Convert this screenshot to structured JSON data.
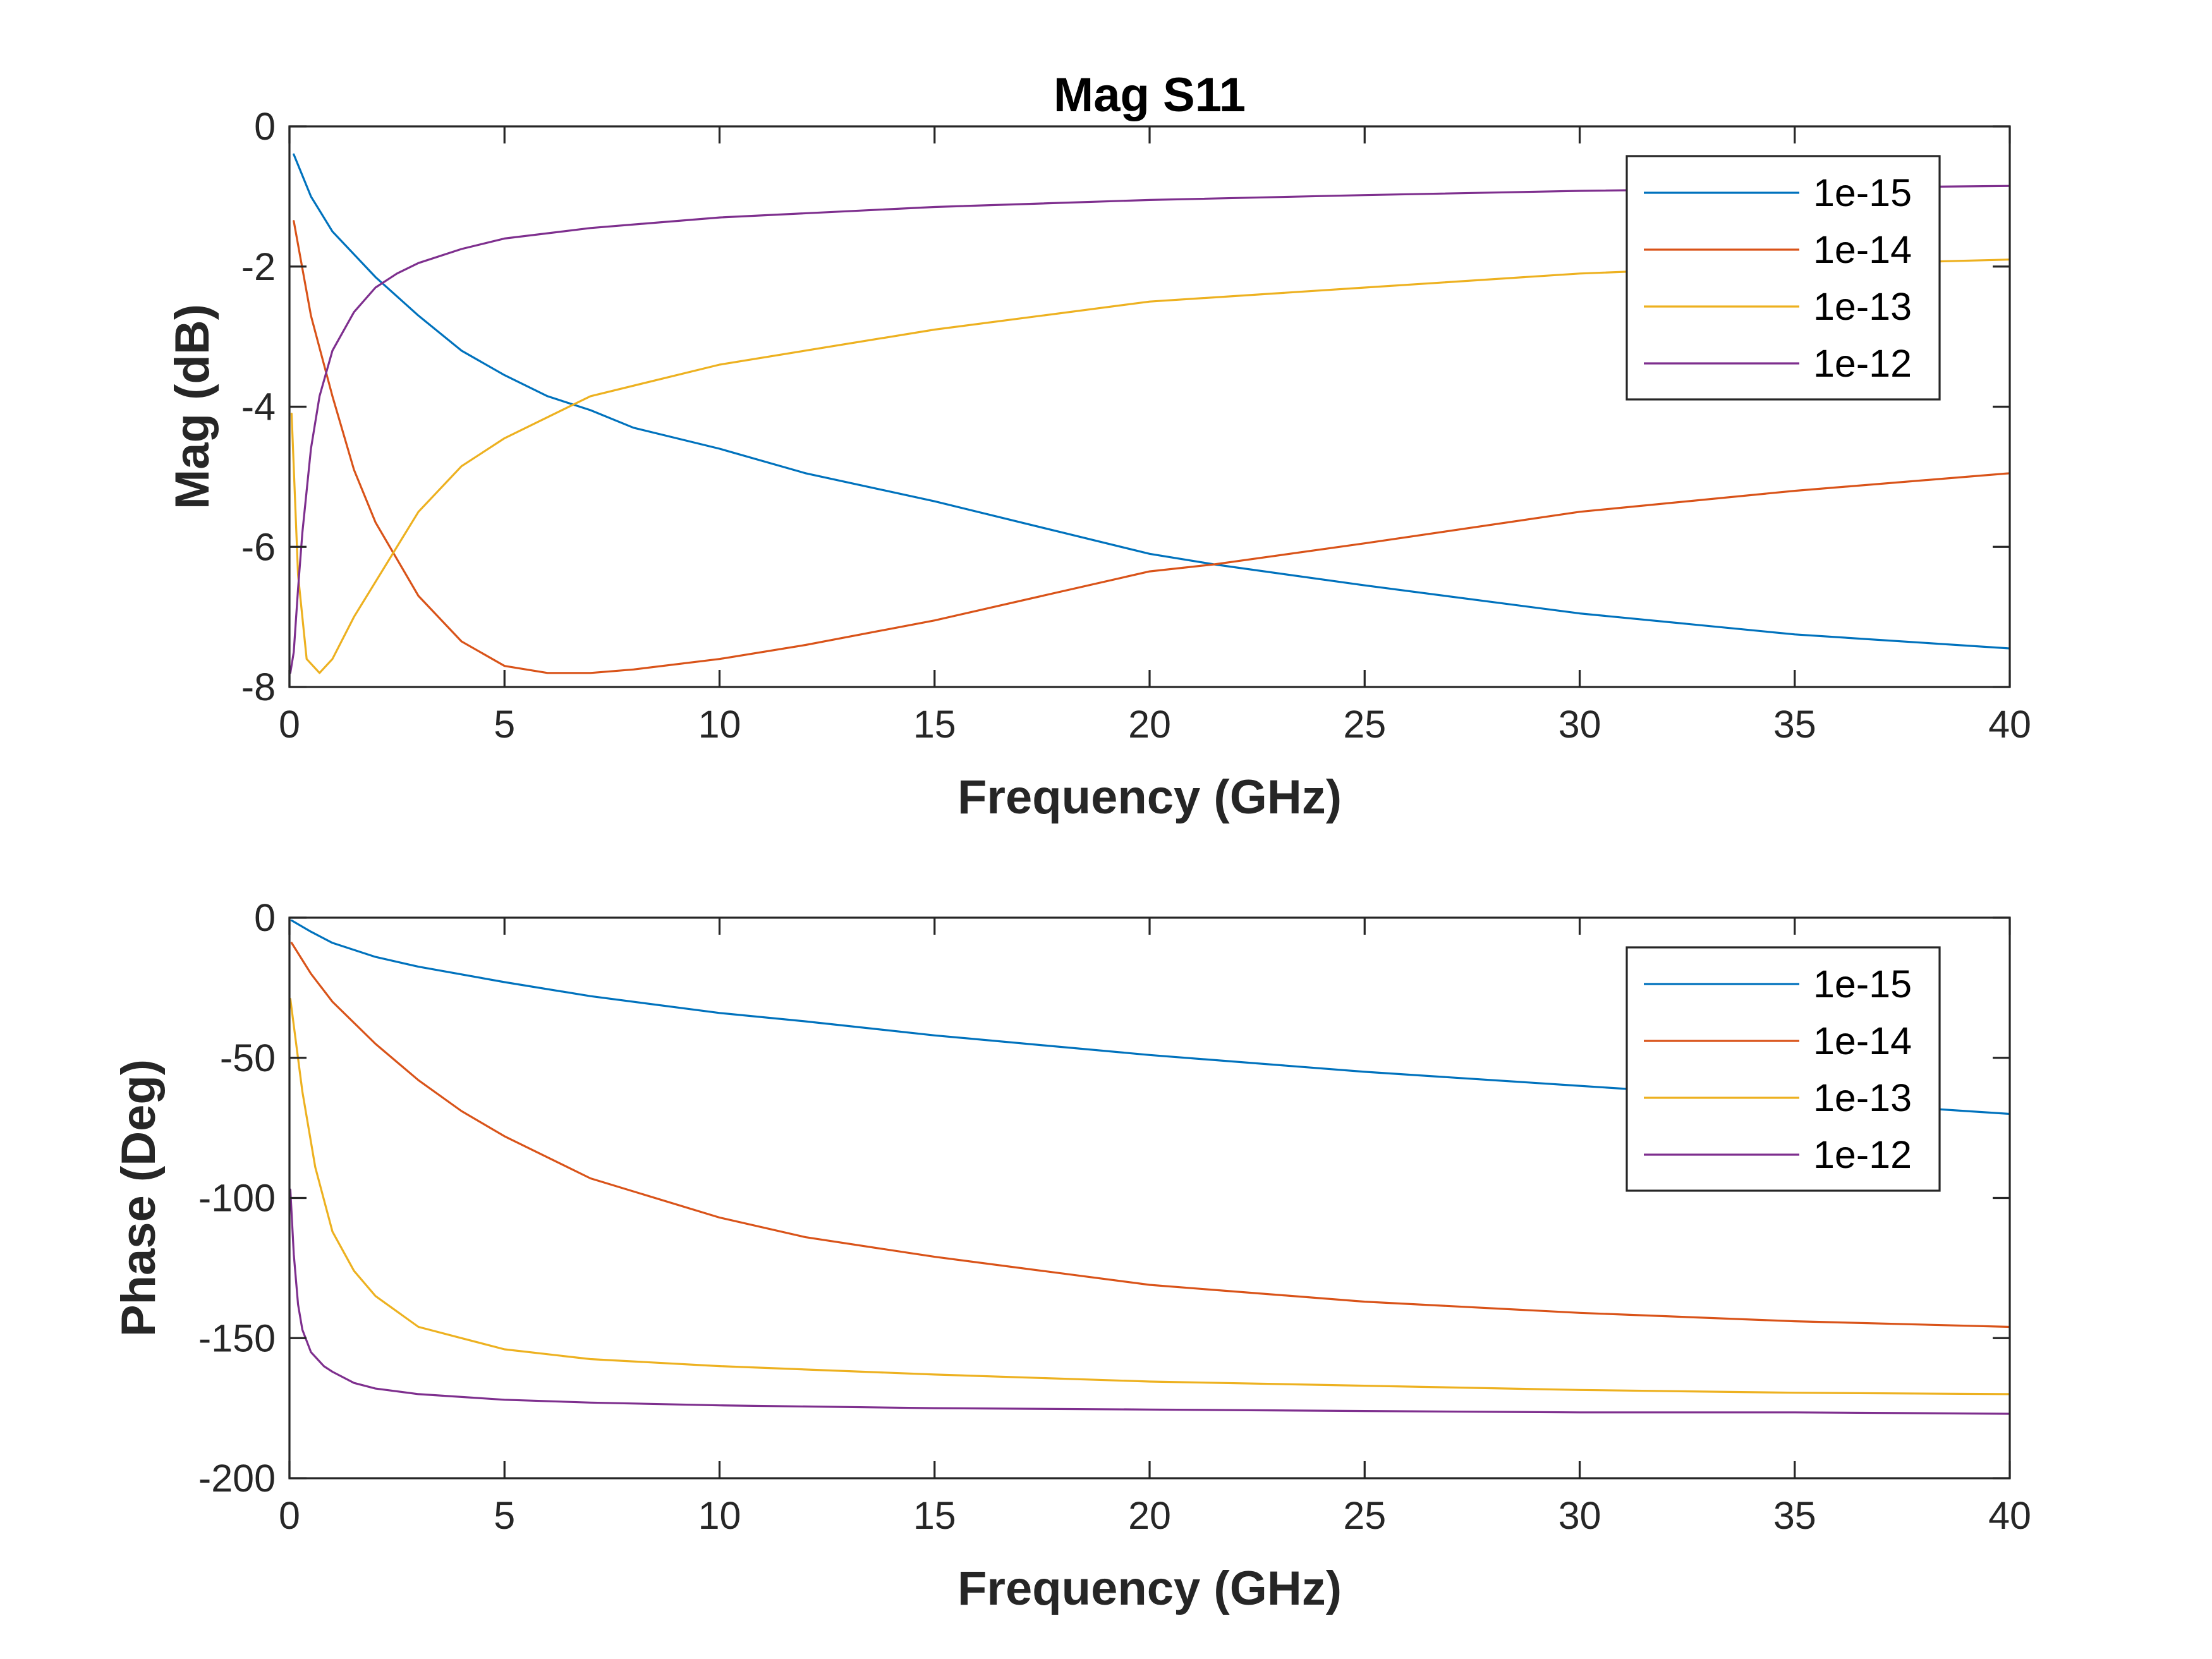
{
  "chart_data": [
    {
      "type": "line",
      "title": "Mag S11",
      "xlabel": "Frequency (GHz)",
      "ylabel": "Mag (dB)",
      "xlim": [
        0,
        40
      ],
      "ylim": [
        -8,
        0
      ],
      "xticks": [
        0,
        5,
        10,
        15,
        20,
        25,
        30,
        35,
        40
      ],
      "xtick_labels": [
        "0",
        "5",
        "10",
        "15",
        "20",
        "25",
        "30",
        "35",
        "40"
      ],
      "yticks": [
        0,
        -2,
        -4,
        -6,
        -8
      ],
      "ytick_labels": [
        "0",
        "-2",
        "-4",
        "-6",
        "-8"
      ],
      "legend_position": "top-right",
      "grid": false,
      "series": [
        {
          "name": "1e-15",
          "color": "#0072BD",
          "x": [
            0.1,
            0.5,
            1,
            2,
            3,
            4,
            5,
            6,
            7,
            8,
            10,
            12,
            15,
            18,
            20,
            21.5,
            25,
            30,
            35,
            40
          ],
          "y": [
            -0.4,
            -1.0,
            -1.5,
            -2.15,
            -2.7,
            -3.2,
            -3.55,
            -3.85,
            -4.05,
            -4.3,
            -4.6,
            -4.95,
            -5.35,
            -5.8,
            -6.1,
            -6.25,
            -6.55,
            -6.95,
            -7.25,
            -7.45
          ]
        },
        {
          "name": "1e-14",
          "color": "#D95319",
          "x": [
            0.1,
            0.5,
            1,
            1.5,
            2,
            3,
            4,
            5,
            6,
            7,
            8,
            10,
            12,
            15,
            20,
            21.5,
            25,
            30,
            35,
            40
          ],
          "y": [
            -1.35,
            -2.7,
            -3.85,
            -4.9,
            -5.65,
            -6.7,
            -7.35,
            -7.7,
            -7.8,
            -7.8,
            -7.75,
            -7.6,
            -7.4,
            -7.05,
            -6.35,
            -6.25,
            -5.95,
            -5.5,
            -5.2,
            -4.95
          ]
        },
        {
          "name": "1e-13",
          "color": "#EDB120",
          "x": [
            0.05,
            0.2,
            0.4,
            0.7,
            1,
            1.5,
            2,
            3,
            4,
            5,
            7,
            10,
            15,
            20,
            25,
            30,
            35,
            40
          ],
          "y": [
            -4.1,
            -6.4,
            -7.6,
            -7.8,
            -7.6,
            -7.0,
            -6.5,
            -5.5,
            -4.85,
            -4.45,
            -3.85,
            -3.4,
            -2.9,
            -2.5,
            -2.3,
            -2.1,
            -1.98,
            -1.9
          ]
        },
        {
          "name": "1e-12",
          "color": "#7E2F8E",
          "x": [
            0.02,
            0.1,
            0.2,
            0.3,
            0.5,
            0.7,
            1,
            1.5,
            2,
            2.5,
            3,
            4,
            5,
            7,
            10,
            15,
            20,
            25,
            30,
            35,
            40
          ],
          "y": [
            -7.8,
            -7.5,
            -6.6,
            -5.8,
            -4.6,
            -3.85,
            -3.2,
            -2.65,
            -2.3,
            -2.1,
            -1.95,
            -1.75,
            -1.6,
            -1.45,
            -1.3,
            -1.15,
            -1.05,
            -0.98,
            -0.92,
            -0.88,
            -0.85
          ]
        }
      ]
    },
    {
      "type": "line",
      "title": "",
      "xlabel": "Frequency (GHz)",
      "ylabel": "Phase (Deg)",
      "xlim": [
        0,
        40
      ],
      "ylim": [
        -200,
        0
      ],
      "xticks": [
        0,
        5,
        10,
        15,
        20,
        25,
        30,
        35,
        40
      ],
      "xtick_labels": [
        "0",
        "5",
        "10",
        "15",
        "20",
        "25",
        "30",
        "35",
        "40"
      ],
      "yticks": [
        0,
        -50,
        -100,
        -150,
        -200
      ],
      "ytick_labels": [
        "0",
        "-50",
        "-100",
        "-150",
        "-200"
      ],
      "legend_position": "top-right",
      "grid": false,
      "series": [
        {
          "name": "1e-15",
          "color": "#0072BD",
          "x": [
            0.05,
            0.5,
            1,
            2,
            3,
            5,
            7,
            10,
            12,
            15,
            20,
            25,
            30,
            35,
            40
          ],
          "y": [
            -1,
            -5,
            -9,
            -14,
            -17.5,
            -23,
            -28,
            -34,
            -37,
            -42,
            -49,
            -55,
            -60,
            -65,
            -70
          ]
        },
        {
          "name": "1e-14",
          "color": "#D95319",
          "x": [
            0.05,
            0.5,
            1,
            2,
            3,
            4,
            5,
            7,
            10,
            12,
            15,
            20,
            25,
            30,
            35,
            40
          ],
          "y": [
            -9,
            -20,
            -30,
            -45,
            -58,
            -69,
            -78,
            -93,
            -107,
            -114,
            -121,
            -131,
            -137,
            -141,
            -144,
            -146
          ]
        },
        {
          "name": "1e-13",
          "color": "#EDB120",
          "x": [
            0.02,
            0.3,
            0.6,
            1,
            1.5,
            2,
            3,
            4,
            5,
            7,
            10,
            15,
            20,
            25,
            30,
            35,
            40
          ],
          "y": [
            -29,
            -62,
            -89,
            -112,
            -126,
            -135,
            -146,
            -150,
            -154,
            -157.5,
            -160,
            -163,
            -165.5,
            -167,
            -168.5,
            -169.5,
            -170
          ]
        },
        {
          "name": "1e-12",
          "color": "#7E2F8E",
          "x": [
            0.02,
            0.1,
            0.2,
            0.3,
            0.5,
            0.8,
            1,
            1.5,
            2,
            3,
            5,
            7,
            10,
            15,
            20,
            25,
            30,
            35,
            40
          ],
          "y": [
            -97,
            -120,
            -138,
            -147,
            -155,
            -160,
            -162,
            -166,
            -168,
            -170,
            -172,
            -173,
            -174,
            -175,
            -175.5,
            -176,
            -176.5,
            -176.5,
            -177
          ]
        }
      ]
    }
  ]
}
